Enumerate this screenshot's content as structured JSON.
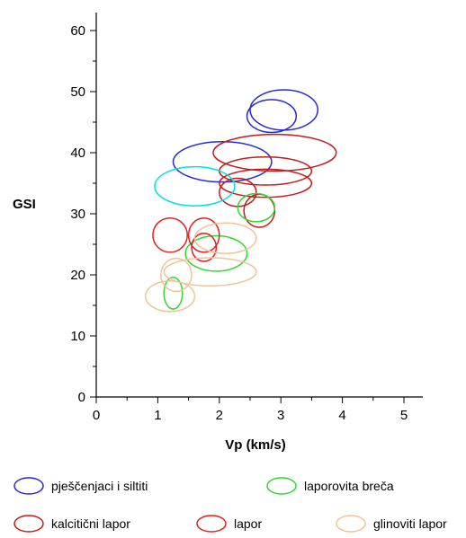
{
  "chart_data": {
    "type": "scatter",
    "title": "",
    "xlabel": "Vp (km/s)",
    "ylabel": "GSI",
    "xlim": [
      0,
      5
    ],
    "ylim": [
      0,
      60
    ],
    "x_ticks": [
      "0",
      "1",
      "2",
      "3",
      "4",
      "5"
    ],
    "y_ticks": [
      "0",
      "10",
      "20",
      "30",
      "40",
      "50",
      "60"
    ],
    "grid": false,
    "legend_position": "bottom",
    "legend": [
      {
        "label": "pješčenjaci i siltiti",
        "color": "#2a2ad0"
      },
      {
        "label": "laporovita breča",
        "color": "#33d633"
      },
      {
        "label": "kalcitični lapor",
        "color": "#c01e1e"
      },
      {
        "label": "lapor",
        "color": "#e02020"
      },
      {
        "label": "glinoviti lapor",
        "color": "#f0c498"
      }
    ],
    "ellipses": [
      {
        "color": "#2a2ad0",
        "cx": 2.85,
        "cy": 46,
        "rx": 0.4,
        "ry": 2.7
      },
      {
        "color": "#2a2ad0",
        "cx": 3.05,
        "cy": 47,
        "rx": 0.55,
        "ry": 3.3
      },
      {
        "color": "#2a2ad0",
        "cx": 2.05,
        "cy": 38.5,
        "rx": 0.8,
        "ry": 3.3
      },
      {
        "color": "#c01e1e",
        "cx": 2.9,
        "cy": 40,
        "rx": 1.0,
        "ry": 3.0
      },
      {
        "color": "#c01e1e",
        "cx": 2.75,
        "cy": 37,
        "rx": 0.75,
        "ry": 2.3
      },
      {
        "color": "#c01e1e",
        "cx": 2.75,
        "cy": 35,
        "rx": 0.75,
        "ry": 2.3
      },
      {
        "color": "#c01e1e",
        "cx": 2.3,
        "cy": 33.5,
        "rx": 0.3,
        "ry": 2.3
      },
      {
        "color": "#c01e1e",
        "cx": 2.65,
        "cy": 30.5,
        "rx": 0.25,
        "ry": 2.7
      },
      {
        "color": "#00e0e8",
        "cx": 1.6,
        "cy": 34.5,
        "rx": 0.65,
        "ry": 3.2
      },
      {
        "color": "#33d633",
        "cx": 2.6,
        "cy": 31,
        "rx": 0.3,
        "ry": 2.3
      },
      {
        "color": "#33d633",
        "cx": 1.95,
        "cy": 23.5,
        "rx": 0.5,
        "ry": 2.9
      },
      {
        "color": "#33d633",
        "cx": 1.25,
        "cy": 17,
        "rx": 0.15,
        "ry": 2.6
      },
      {
        "color": "#e02020",
        "cx": 1.2,
        "cy": 26.5,
        "rx": 0.28,
        "ry": 2.8
      },
      {
        "color": "#e02020",
        "cx": 1.75,
        "cy": 26.5,
        "rx": 0.25,
        "ry": 2.8
      },
      {
        "color": "#e02020",
        "cx": 1.75,
        "cy": 24.5,
        "rx": 0.2,
        "ry": 2.3
      },
      {
        "color": "#f0c498",
        "cx": 2.1,
        "cy": 26,
        "rx": 0.5,
        "ry": 2.5
      },
      {
        "color": "#f0c498",
        "cx": 1.85,
        "cy": 20.5,
        "rx": 0.75,
        "ry": 2.3
      },
      {
        "color": "#f0c498",
        "cx": 1.3,
        "cy": 20,
        "rx": 0.25,
        "ry": 2.7
      },
      {
        "color": "#f0c498",
        "cx": 1.2,
        "cy": 16.5,
        "rx": 0.4,
        "ry": 2.5
      }
    ]
  }
}
